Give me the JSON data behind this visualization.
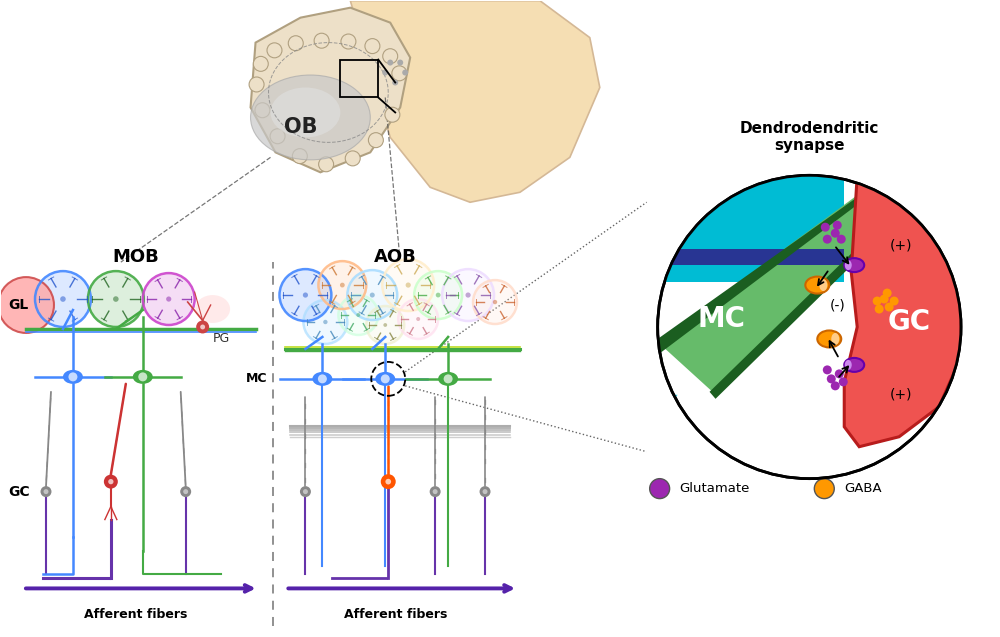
{
  "ob_label": "OB",
  "mob_label": "MOB",
  "aob_label": "AOB",
  "gl_label": "GL",
  "pg_label": "PG",
  "mc_label": "MC",
  "gc_label": "GC",
  "afferent_label": "Afferent fibers",
  "dendro_title": "Dendrodendritic\nsynapse",
  "mc_circle_label": "MC",
  "gc_circle_label": "GC",
  "glutamate_label": "Glutamate",
  "gaba_label": "GABA",
  "plus_top": "(+)",
  "minus_mid": "(-)",
  "plus_bot": "(+)",
  "brain_fill": "#f5deb3",
  "brain_outline": "#d4b896",
  "ob_fill": "#ede0c8",
  "ob_inner_fill": "#c8c8c8",
  "cyan_stripe": "#00bcd4",
  "blue_stripe": "#283593",
  "green_stripe": "#66bb6a",
  "dark_green_stripe": "#1b5e20",
  "red_gc_fill": "#ef5350",
  "dark_red_gc": "#b71c1c",
  "purple_receptor": "#9c27b0",
  "orange_receptor": "#ff9800",
  "glutamate_color": "#9c27b0",
  "gaba_color": "#ff9800",
  "bg_color": "#ffffff",
  "dashed_color": "#555555"
}
